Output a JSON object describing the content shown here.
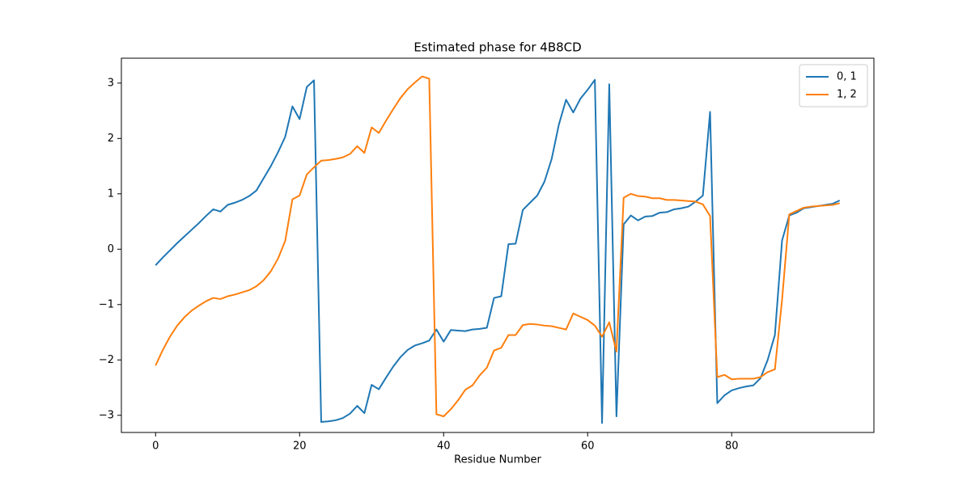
{
  "chart_data": {
    "type": "line",
    "title": "Estimated phase for 4B8CD",
    "xlabel": "Residue Number",
    "x": [
      0,
      1,
      2,
      3,
      4,
      5,
      6,
      7,
      8,
      9,
      10,
      11,
      12,
      13,
      14,
      15,
      16,
      17,
      18,
      19,
      20,
      21,
      22,
      23,
      24,
      25,
      26,
      27,
      28,
      29,
      30,
      31,
      32,
      33,
      34,
      35,
      36,
      37,
      38,
      39,
      40,
      41,
      42,
      43,
      44,
      45,
      46,
      47,
      48,
      49,
      50,
      51,
      52,
      53,
      54,
      55,
      56,
      57,
      58,
      59,
      60,
      61,
      62,
      63,
      64,
      65,
      66,
      67,
      68,
      69,
      70,
      71,
      72,
      73,
      74,
      75,
      76,
      77,
      78,
      79,
      80,
      81,
      82,
      83,
      84,
      85,
      86,
      87,
      88,
      89,
      90,
      91,
      92,
      93,
      94,
      95
    ],
    "series": [
      {
        "name": "0, 1",
        "color": "#1f77b4",
        "values": [
          -0.29,
          -0.15,
          -0.02,
          0.11,
          0.23,
          0.35,
          0.47,
          0.6,
          0.72,
          0.68,
          0.8,
          0.84,
          0.89,
          0.96,
          1.06,
          1.28,
          1.5,
          1.75,
          2.03,
          2.58,
          2.35,
          2.93,
          3.05,
          -3.12,
          -3.11,
          -3.09,
          -3.05,
          -2.97,
          -2.83,
          -2.96,
          -2.45,
          -2.53,
          -2.32,
          -2.12,
          -1.95,
          -1.82,
          -1.74,
          -1.7,
          -1.65,
          -1.45,
          -1.67,
          -1.46,
          -1.47,
          -1.48,
          -1.45,
          -1.44,
          -1.42,
          -0.88,
          -0.85,
          0.09,
          0.1,
          0.71,
          0.84,
          0.97,
          1.22,
          1.63,
          2.25,
          2.7,
          2.47,
          2.72,
          2.88,
          3.06,
          -3.14,
          2.98,
          -3.02,
          0.45,
          0.61,
          0.52,
          0.59,
          0.6,
          0.66,
          0.67,
          0.72,
          0.74,
          0.77,
          0.86,
          0.97,
          2.48,
          -2.78,
          -2.64,
          -2.55,
          -2.51,
          -2.48,
          -2.46,
          -2.33,
          -2.0,
          -1.55,
          0.16,
          0.61,
          0.66,
          0.74,
          0.76,
          0.78,
          0.8,
          0.82,
          0.88
        ]
      },
      {
        "name": "1, 2",
        "color": "#ff7f0e",
        "values": [
          -2.1,
          -1.82,
          -1.58,
          -1.38,
          -1.23,
          -1.11,
          -1.02,
          -0.94,
          -0.88,
          -0.9,
          -0.85,
          -0.82,
          -0.78,
          -0.74,
          -0.67,
          -0.56,
          -0.4,
          -0.17,
          0.15,
          0.9,
          0.97,
          1.35,
          1.48,
          1.6,
          1.61,
          1.63,
          1.66,
          1.72,
          1.86,
          1.74,
          2.2,
          2.1,
          2.32,
          2.53,
          2.73,
          2.89,
          3.01,
          3.12,
          3.08,
          -2.98,
          -3.02,
          -2.89,
          -2.73,
          -2.54,
          -2.46,
          -2.28,
          -2.14,
          -1.83,
          -1.78,
          -1.55,
          -1.55,
          -1.37,
          -1.35,
          -1.36,
          -1.38,
          -1.39,
          -1.42,
          -1.45,
          -1.16,
          -1.22,
          -1.28,
          -1.38,
          -1.58,
          -1.32,
          -1.85,
          0.93,
          1.0,
          0.96,
          0.95,
          0.92,
          0.92,
          0.89,
          0.89,
          0.88,
          0.87,
          0.86,
          0.81,
          0.6,
          -2.31,
          -2.27,
          -2.35,
          -2.34,
          -2.34,
          -2.34,
          -2.31,
          -2.22,
          -2.17,
          -0.91,
          0.63,
          0.69,
          0.75,
          0.77,
          0.78,
          0.79,
          0.8,
          0.83
        ]
      }
    ],
    "xlim": [
      -4.75,
      99.75
    ],
    "ylim": [
      -3.31,
      3.45
    ],
    "xticks": [
      0,
      20,
      40,
      60,
      80
    ],
    "yticks": [
      {
        "value": -3,
        "label": "−3"
      },
      {
        "value": -2,
        "label": "−2"
      },
      {
        "value": -1,
        "label": "−1"
      },
      0,
      1,
      2,
      3
    ],
    "legend": "upper right"
  }
}
